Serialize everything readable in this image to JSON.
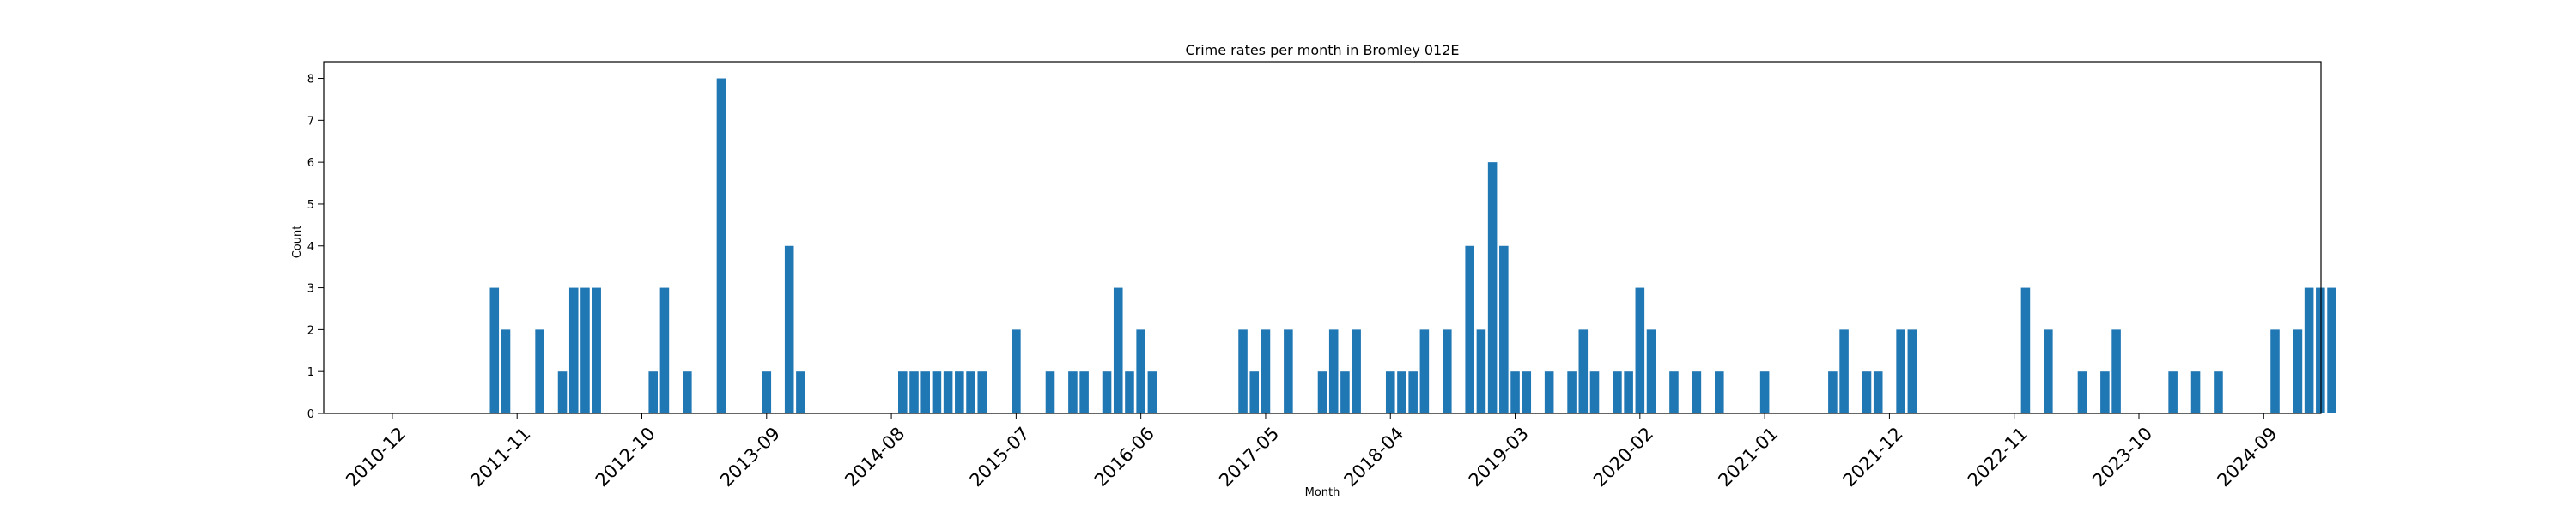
{
  "chart_data": {
    "type": "bar",
    "title": "Crime rates per month in Bromley 012E",
    "xlabel": "Month",
    "ylabel": "Count",
    "ylim": [
      0,
      8.4
    ],
    "yticks": [
      0,
      1,
      2,
      3,
      4,
      5,
      6,
      7,
      8
    ],
    "bar_color": "#1f77b4",
    "x_tick_labels": [
      "2010-12",
      "2011-11",
      "2012-10",
      "2013-09",
      "2014-08",
      "2015-07",
      "2016-06",
      "2017-05",
      "2018-04",
      "2019-03",
      "2020-02",
      "2021-01",
      "2021-12",
      "2022-11",
      "2023-10",
      "2024-09"
    ],
    "categories": [
      "2011-09",
      "2011-10",
      "2012-01",
      "2012-03",
      "2012-04",
      "2012-05",
      "2012-06",
      "2012-11",
      "2012-12",
      "2013-02",
      "2013-05",
      "2013-09",
      "2013-11",
      "2013-12",
      "2014-09",
      "2014-10",
      "2014-11",
      "2014-12",
      "2015-01",
      "2015-02",
      "2015-03",
      "2015-04",
      "2015-07",
      "2015-10",
      "2015-12",
      "2016-01",
      "2016-03",
      "2016-04",
      "2016-05",
      "2016-06",
      "2016-07",
      "2017-03",
      "2017-04",
      "2017-05",
      "2017-07",
      "2017-10",
      "2017-11",
      "2017-12",
      "2018-01",
      "2018-04",
      "2018-05",
      "2018-06",
      "2018-07",
      "2018-09",
      "2018-11",
      "2018-12",
      "2019-01",
      "2019-02",
      "2019-03",
      "2019-04",
      "2019-06",
      "2019-08",
      "2019-09",
      "2019-10",
      "2019-12",
      "2020-01",
      "2020-02",
      "2020-03",
      "2020-05",
      "2020-07",
      "2020-09",
      "2021-01",
      "2021-07",
      "2021-08",
      "2021-10",
      "2021-11",
      "2022-01",
      "2022-02",
      "2022-12",
      "2023-02",
      "2023-05",
      "2023-07",
      "2023-08",
      "2024-01",
      "2024-03",
      "2024-05",
      "2024-10",
      "2024-12",
      "2025-01",
      "2025-02",
      "2025-03"
    ],
    "values": [
      3,
      2,
      2,
      1,
      3,
      3,
      3,
      1,
      3,
      1,
      8,
      1,
      4,
      1,
      1,
      1,
      1,
      1,
      1,
      1,
      1,
      1,
      2,
      1,
      1,
      1,
      1,
      3,
      1,
      2,
      1,
      2,
      1,
      2,
      2,
      1,
      2,
      1,
      2,
      1,
      1,
      1,
      2,
      2,
      4,
      2,
      6,
      4,
      1,
      1,
      1,
      1,
      2,
      1,
      1,
      1,
      3,
      2,
      1,
      1,
      1,
      1,
      1,
      2,
      1,
      1,
      2,
      2,
      3,
      2,
      1,
      1,
      2,
      1,
      1,
      1,
      2,
      2,
      3,
      3,
      3
    ]
  }
}
